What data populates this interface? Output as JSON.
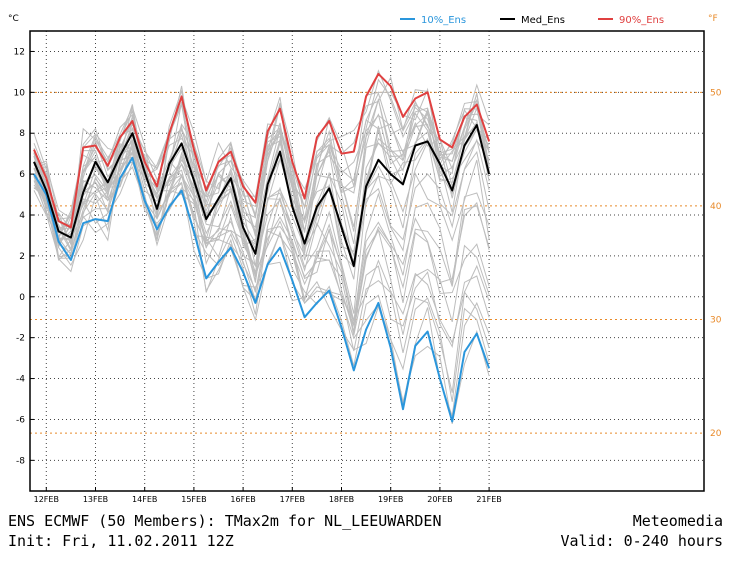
{
  "chart_data": {
    "type": "line",
    "left_unit": "°C",
    "right_unit": "°F",
    "x_tick_labels": [
      "12FEB",
      "13FEB",
      "14FEB",
      "15FEB",
      "16FEB",
      "17FEB",
      "18FEB",
      "19FEB",
      "20FEB",
      "21FEB"
    ],
    "y_ticks": [
      -8,
      -6,
      -4,
      -2,
      0,
      2,
      4,
      6,
      8,
      10,
      12
    ],
    "ylim": [
      -9.5,
      13
    ],
    "f_ticks": [
      20,
      30,
      40,
      50
    ],
    "colors": {
      "p10": "#2a96dc",
      "median": "#000000",
      "p90": "#e04040",
      "members": "#bdbdbd",
      "fahrenheit": "#e88a2a"
    },
    "grid": true,
    "series": [
      {
        "name": "10%_Ens",
        "values": [
          6.0,
          5.0,
          2.7,
          1.8,
          3.6,
          3.8,
          3.7,
          5.8,
          6.8,
          4.7,
          3.3,
          4.4,
          5.2,
          3.2,
          0.9,
          1.7,
          2.4,
          1.2,
          -0.3,
          1.6,
          2.4,
          0.8,
          -1.0,
          -0.3,
          0.3,
          -1.5,
          -3.6,
          -1.6,
          -0.3,
          -2.5,
          -5.5,
          -2.4,
          -1.7,
          -4.0,
          -6.1,
          -2.7,
          -1.8,
          -3.5
        ]
      },
      {
        "name": "Med_Ens",
        "values": [
          6.6,
          5.2,
          3.2,
          2.9,
          5.1,
          6.6,
          5.6,
          6.9,
          8.0,
          6.1,
          4.3,
          6.5,
          7.5,
          5.7,
          3.8,
          4.8,
          5.8,
          3.4,
          2.1,
          5.5,
          7.1,
          4.4,
          2.6,
          4.4,
          5.3,
          3.4,
          1.5,
          5.4,
          6.7,
          6.0,
          5.5,
          7.4,
          7.6,
          6.5,
          5.2,
          7.4,
          8.4,
          6.0
        ]
      },
      {
        "name": "90%_Ens",
        "values": [
          7.2,
          5.8,
          3.7,
          3.4,
          7.3,
          7.4,
          6.4,
          7.8,
          8.6,
          6.6,
          5.4,
          8.0,
          9.8,
          7.2,
          5.2,
          6.6,
          7.1,
          5.4,
          4.6,
          8.1,
          9.2,
          6.6,
          4.8,
          7.8,
          8.6,
          7.0,
          7.1,
          9.8,
          10.9,
          10.3,
          8.8,
          9.7,
          10.0,
          7.7,
          7.3,
          8.8,
          9.4,
          7.6
        ]
      }
    ]
  },
  "legend": [
    {
      "label": "10%_Ens",
      "color": "#2a96dc"
    },
    {
      "label": "Med_Ens",
      "color": "#000000"
    },
    {
      "label": "90%_Ens",
      "color": "#e04040"
    }
  ],
  "footer": {
    "title_line": "ENS ECMWF (50 Members): TMax2m for NL_LEEUWARDEN",
    "provider": "Meteomedia",
    "init_line": "Init: Fri, 11.02.2011 12Z",
    "valid_line": "Valid: 0-240 hours"
  }
}
